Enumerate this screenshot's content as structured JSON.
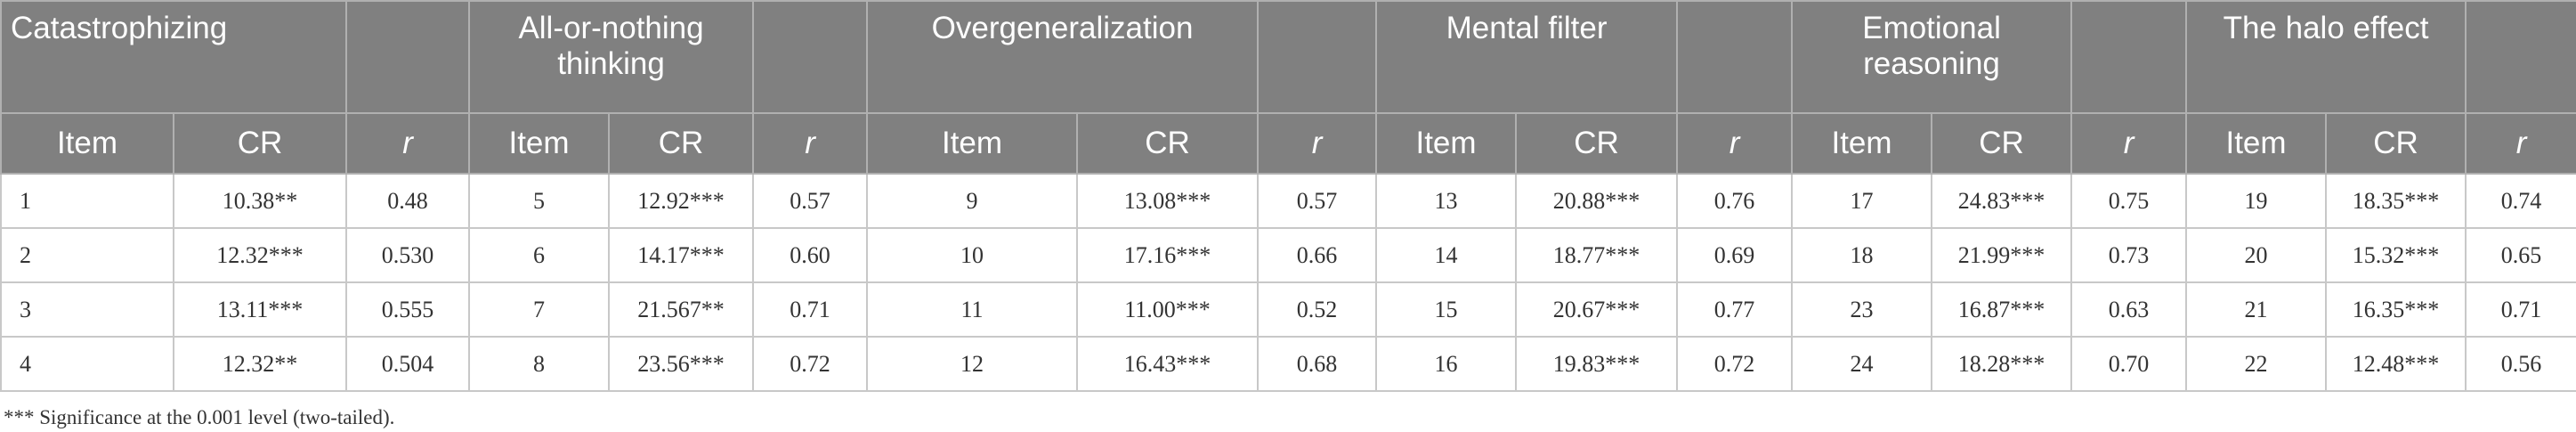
{
  "table": {
    "groups": [
      "Catastrophizing",
      "All-or-nothing thinking",
      "Overgeneralization",
      "Mental filter",
      "Emotional reasoning",
      "The halo effect"
    ],
    "subheaders": [
      "Item",
      "CR",
      "r",
      "Item",
      "CR",
      "r",
      "Item",
      "CR",
      "r",
      "Item",
      "CR",
      "r",
      "Item",
      "CR",
      "r",
      "Item",
      "CR",
      "r"
    ],
    "rows": [
      [
        "1",
        "10.38**",
        "0.48",
        "5",
        "12.92***",
        "0.57",
        "9",
        "13.08***",
        "0.57",
        "13",
        "20.88***",
        "0.76",
        "17",
        "24.83***",
        "0.75",
        "19",
        "18.35***",
        "0.74"
      ],
      [
        "2",
        "12.32***",
        "0.530",
        "6",
        "14.17***",
        "0.60",
        "10",
        "17.16***",
        "0.66",
        "14",
        "18.77***",
        "0.69",
        "18",
        "21.99***",
        "0.73",
        "20",
        "15.32***",
        "0.65"
      ],
      [
        "3",
        "13.11***",
        "0.555",
        "7",
        "21.567**",
        "0.71",
        "11",
        "11.00***",
        "0.52",
        "15",
        "20.67***",
        "0.77",
        "23",
        "16.87***",
        "0.63",
        "21",
        "16.35***",
        "0.71"
      ],
      [
        "4",
        "12.32**",
        "0.504",
        "8",
        "23.56***",
        "0.72",
        "12",
        "16.43***",
        "0.68",
        "16",
        "19.83***",
        "0.72",
        "24",
        "18.28***",
        "0.70",
        "22",
        "12.48***",
        "0.56"
      ]
    ]
  },
  "footnote": "*** Significance at the 0.001 level (two-tailed)."
}
